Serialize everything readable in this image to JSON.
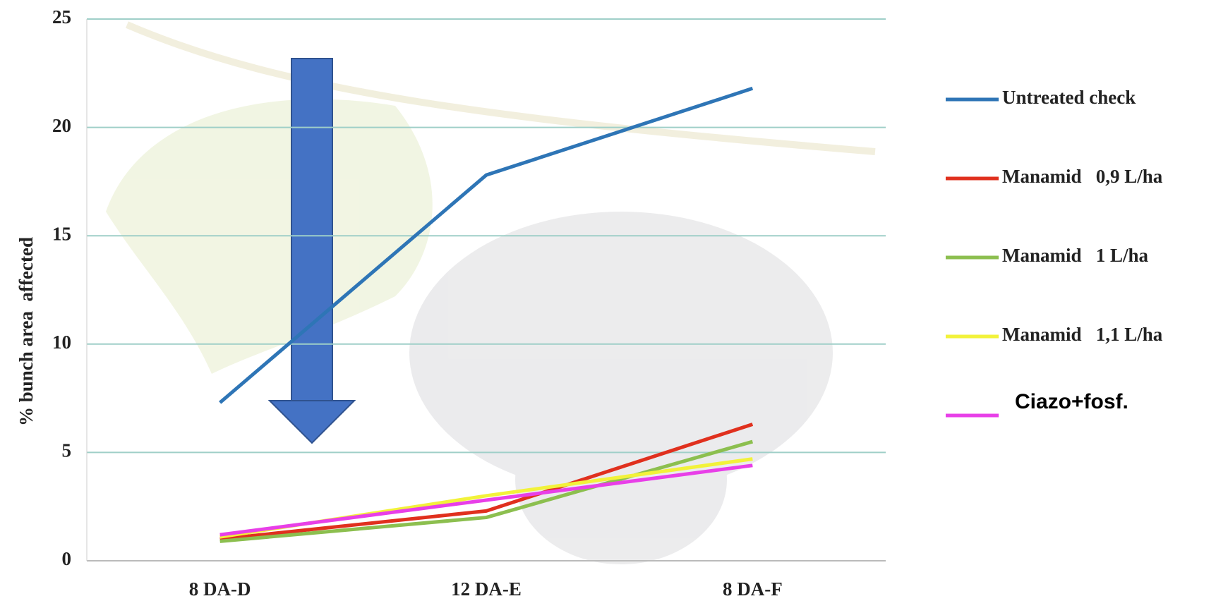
{
  "chart_data": {
    "type": "line",
    "y_label": "% bunch area  affected",
    "categories": [
      "8 DA-D",
      "12 DA-E",
      "8 DA-F"
    ],
    "series": [
      {
        "name": "Untreated check",
        "color": "#2e75b6",
        "values": [
          7.3,
          17.8,
          21.8
        ]
      },
      {
        "name": "Manamid   0,9 L/ha",
        "color": "#e0301e",
        "values": [
          1.0,
          2.3,
          6.3
        ]
      },
      {
        "name": "Manamid   1 L/ha",
        "color": "#8cbf4f",
        "values": [
          0.9,
          2.0,
          5.5
        ]
      },
      {
        "name": "Manamid   1,1 L/ha",
        "color": "#f2f23a",
        "values": [
          1.1,
          3.0,
          4.7
        ]
      },
      {
        "name": "Ciazo+fosf.",
        "color": "#e83fe8",
        "values": [
          1.2,
          2.8,
          4.4
        ]
      }
    ],
    "ylim": [
      0,
      25
    ],
    "yticks": [
      0,
      5,
      10,
      15,
      20,
      25
    ],
    "grid": true
  }
}
